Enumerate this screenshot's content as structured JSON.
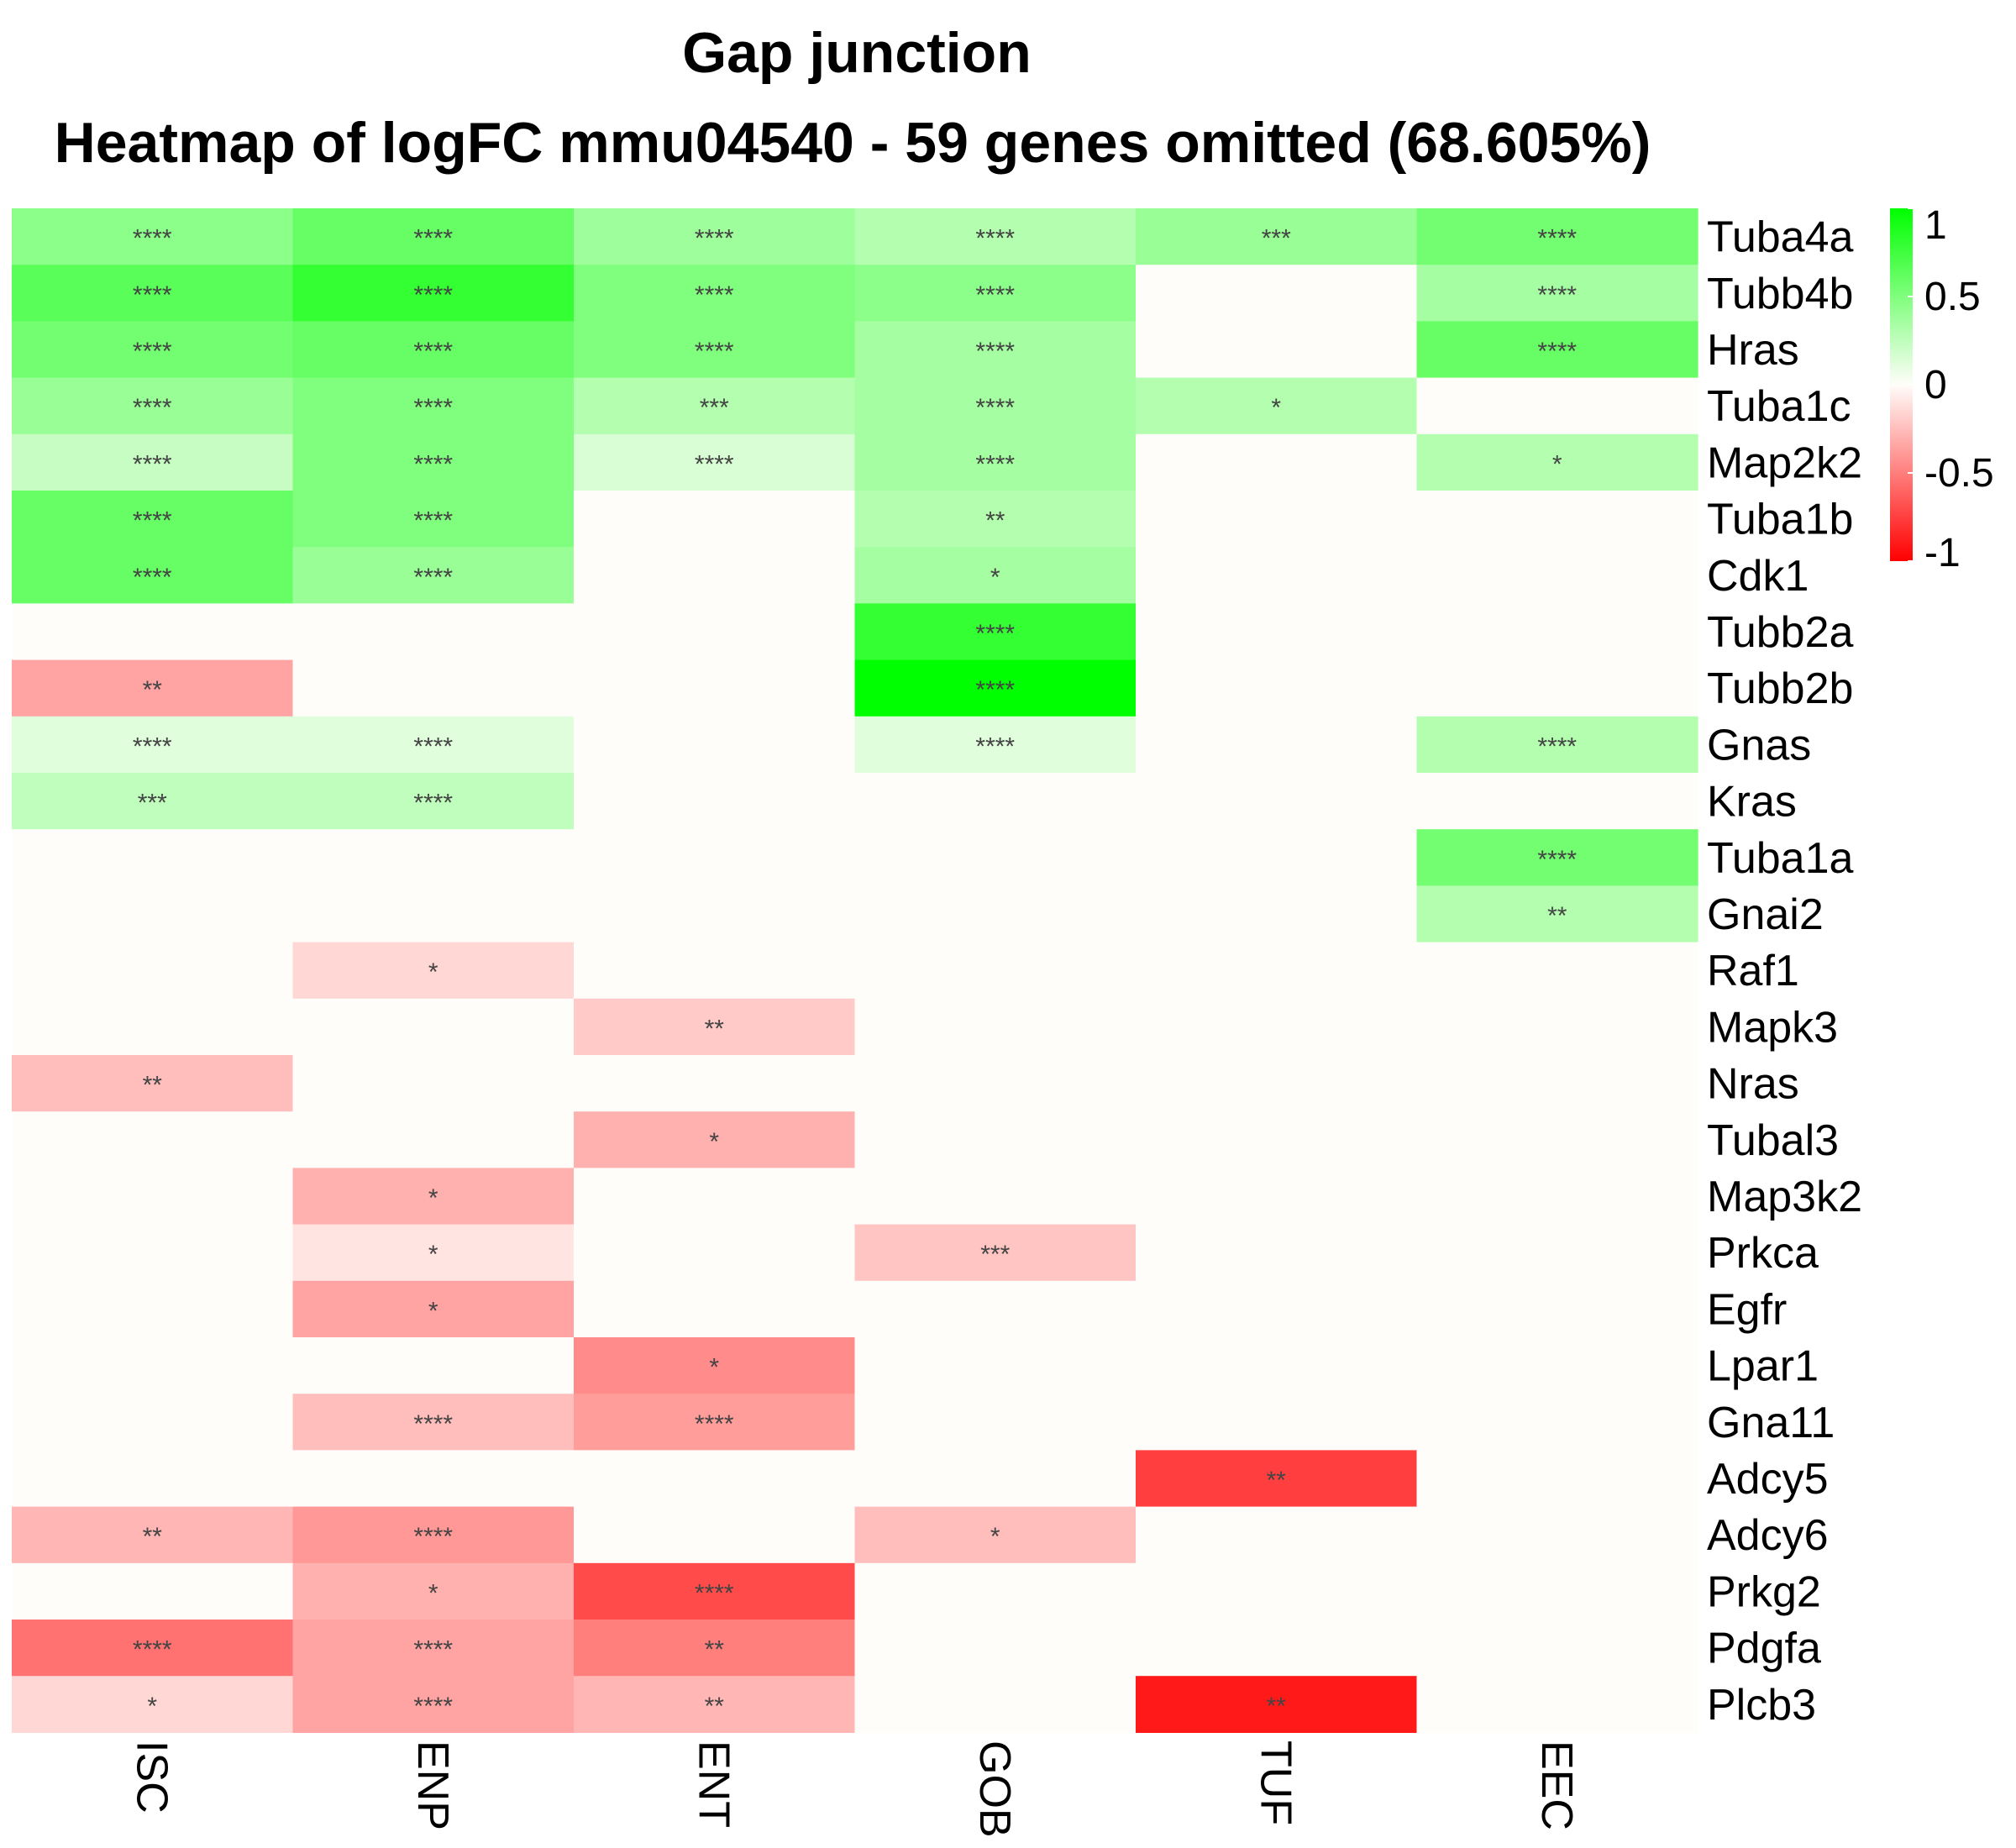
{
  "chart_data": {
    "type": "heatmap",
    "title": "Gap junction",
    "subtitle": "Heatmap of logFC mmu04540 - 59 genes omitted (68.605%)",
    "columns": [
      "ISC",
      "ENP",
      "ENT",
      "GOB",
      "TUF",
      "EEC"
    ],
    "rows": [
      "Tuba4a",
      "Tubb4b",
      "Hras",
      "Tuba1c",
      "Map2k2",
      "Tuba1b",
      "Cdk1",
      "Tubb2a",
      "Tubb2b",
      "Gnas",
      "Kras",
      "Tuba1a",
      "Gnai2",
      "Raf1",
      "Mapk3",
      "Nras",
      "Tubal3",
      "Map3k2",
      "Prkca",
      "Egfr",
      "Lpar1",
      "Gna11",
      "Adcy5",
      "Adcy6",
      "Prkg2",
      "Pdgfa",
      "Plcb3"
    ],
    "values": [
      [
        0.45,
        0.6,
        0.38,
        0.3,
        0.4,
        0.55
      ],
      [
        0.65,
        0.8,
        0.5,
        0.45,
        0,
        0.35
      ],
      [
        0.55,
        0.6,
        0.5,
        0.35,
        0,
        0.6
      ],
      [
        0.4,
        0.5,
        0.3,
        0.35,
        0.3,
        0
      ],
      [
        0.22,
        0.5,
        0.15,
        0.35,
        0,
        0.3
      ],
      [
        0.6,
        0.5,
        0,
        0.3,
        0,
        0
      ],
      [
        0.6,
        0.4,
        0,
        0.35,
        0,
        0
      ],
      [
        0,
        0,
        0,
        0.8,
        0,
        0
      ],
      [
        -0.35,
        0,
        0,
        1.0,
        0,
        0
      ],
      [
        0.12,
        0.12,
        0,
        0.12,
        0,
        0.3
      ],
      [
        0.25,
        0.25,
        0,
        0,
        0,
        0
      ],
      [
        0,
        0,
        0,
        0,
        0,
        0.55
      ],
      [
        0,
        0,
        0,
        0,
        0,
        0.3
      ],
      [
        0,
        -0.15,
        0,
        0,
        0,
        0
      ],
      [
        0,
        0,
        -0.2,
        0,
        0,
        0
      ],
      [
        -0.25,
        0,
        0,
        0,
        0,
        0
      ],
      [
        0,
        0,
        -0.3,
        0,
        0,
        0
      ],
      [
        0,
        -0.3,
        0,
        0,
        0,
        0
      ],
      [
        0,
        -0.1,
        0,
        -0.22,
        0,
        0
      ],
      [
        0,
        -0.35,
        0,
        0,
        0,
        0
      ],
      [
        0,
        0,
        -0.45,
        0,
        0,
        0
      ],
      [
        0,
        -0.25,
        -0.38,
        0,
        0,
        0
      ],
      [
        0,
        0,
        0,
        0,
        -0.75,
        0
      ],
      [
        -0.28,
        -0.4,
        0,
        -0.25,
        0,
        0
      ],
      [
        0,
        -0.3,
        -0.7,
        0,
        0,
        0
      ],
      [
        -0.55,
        -0.35,
        -0.5,
        0,
        0,
        0
      ],
      [
        -0.15,
        -0.35,
        -0.28,
        0,
        -0.9,
        0
      ]
    ],
    "significance": [
      [
        "****",
        "****",
        "****",
        "****",
        "***",
        "****"
      ],
      [
        "****",
        "****",
        "****",
        "****",
        "",
        "****"
      ],
      [
        "****",
        "****",
        "****",
        "****",
        "",
        "****"
      ],
      [
        "****",
        "****",
        "***",
        "****",
        "*",
        ""
      ],
      [
        "****",
        "****",
        "****",
        "****",
        "",
        "*"
      ],
      [
        "****",
        "****",
        "",
        "**",
        "",
        ""
      ],
      [
        "****",
        "****",
        "",
        "*",
        "",
        ""
      ],
      [
        "",
        "",
        "",
        "****",
        "",
        ""
      ],
      [
        "**",
        "",
        "",
        "****",
        "",
        ""
      ],
      [
        "****",
        "****",
        "",
        "****",
        "",
        "****"
      ],
      [
        "***",
        "****",
        "",
        "",
        "",
        ""
      ],
      [
        "",
        "",
        "",
        "",
        "",
        "****"
      ],
      [
        "",
        "",
        "",
        "",
        "",
        "**"
      ],
      [
        "",
        "*",
        "",
        "",
        "",
        ""
      ],
      [
        "",
        "",
        "**",
        "",
        "",
        ""
      ],
      [
        "**",
        "",
        "",
        "",
        "",
        ""
      ],
      [
        "",
        "",
        "*",
        "",
        "",
        ""
      ],
      [
        "",
        "*",
        "",
        "",
        "",
        ""
      ],
      [
        "",
        "*",
        "",
        "***",
        "",
        ""
      ],
      [
        "",
        "*",
        "",
        "",
        "",
        ""
      ],
      [
        "",
        "",
        "*",
        "",
        "",
        ""
      ],
      [
        "",
        "****",
        "****",
        "",
        "",
        ""
      ],
      [
        "",
        "",
        "",
        "",
        "**",
        ""
      ],
      [
        "**",
        "****",
        "",
        "*",
        "",
        ""
      ],
      [
        "",
        "*",
        "****",
        "",
        "",
        ""
      ],
      [
        "****",
        "****",
        "**",
        "",
        "",
        ""
      ],
      [
        "*",
        "****",
        "**",
        "",
        "**",
        ""
      ]
    ],
    "color_scale": {
      "min": -1,
      "max": 1,
      "low_color": "#ff0000",
      "mid_color": "#fffdfa",
      "high_color": "#00ff00"
    },
    "legend": {
      "position": "top-right",
      "tick_labels": [
        "1",
        "0.5",
        "0",
        "-0.5",
        "-1"
      ],
      "tick_values": [
        1,
        0.5,
        0,
        -0.5,
        -1
      ]
    }
  }
}
